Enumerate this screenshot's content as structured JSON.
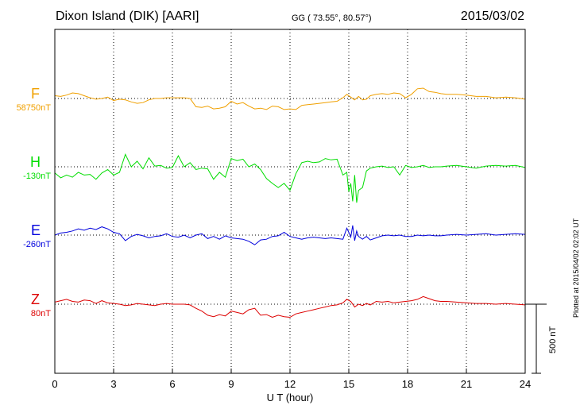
{
  "header": {
    "station": "Dixon Island (DIK)  [AARI]",
    "coords": "GG ( 73.55°,  80.57°)",
    "date": "2015/03/02"
  },
  "footer": {
    "plotted": "Plotted at 2015/04/02 02:02 UT"
  },
  "scale_bar": {
    "label": "500 nT",
    "value_nT": 500
  },
  "chart_data": {
    "type": "line",
    "title": "Dixon Island (DIK)  [AARI]",
    "xlabel": "U T (hour)",
    "ylabel": "",
    "xlim": [
      0,
      24
    ],
    "xticks": [
      0,
      3,
      6,
      9,
      12,
      15,
      18,
      21,
      24
    ],
    "grid": true,
    "series": [
      {
        "name": "F",
        "baseline": "58750nT",
        "color": "#f0a000",
        "x": [
          0,
          0.3,
          0.6,
          0.9,
          1.2,
          1.5,
          1.8,
          2.1,
          2.4,
          2.7,
          3.0,
          3.3,
          3.6,
          3.9,
          4.2,
          4.5,
          4.8,
          5.1,
          5.4,
          5.7,
          6.0,
          6.3,
          6.6,
          6.9,
          7.2,
          7.5,
          7.8,
          8.1,
          8.4,
          8.7,
          9.0,
          9.3,
          9.6,
          9.9,
          10.2,
          10.5,
          10.8,
          11.1,
          11.4,
          11.7,
          12.0,
          12.3,
          12.6,
          12.9,
          13.2,
          13.5,
          13.8,
          14.1,
          14.4,
          14.7,
          14.9,
          15.1,
          15.3,
          15.5,
          15.7,
          15.9,
          16.1,
          16.4,
          16.7,
          17.0,
          17.3,
          17.6,
          17.9,
          18.2,
          18.5,
          18.8,
          19.1,
          19.4,
          19.7,
          20.0,
          20.5,
          21.0,
          21.5,
          22.0,
          22.5,
          23.0,
          23.5,
          24.0
        ],
        "y": [
          20,
          15,
          25,
          40,
          35,
          20,
          5,
          -5,
          0,
          10,
          -15,
          -5,
          -10,
          -25,
          -35,
          -30,
          -10,
          0,
          0,
          5,
          5,
          5,
          5,
          0,
          -60,
          -65,
          -55,
          -75,
          -70,
          -60,
          -20,
          -40,
          -30,
          -55,
          -75,
          -70,
          -80,
          -55,
          -60,
          -80,
          -75,
          -80,
          -50,
          -45,
          -40,
          -35,
          -30,
          -25,
          -20,
          5,
          30,
          10,
          -10,
          15,
          -10,
          -5,
          20,
          30,
          35,
          30,
          40,
          35,
          5,
          30,
          70,
          75,
          50,
          45,
          35,
          30,
          30,
          25,
          15,
          15,
          5,
          10,
          5,
          -5
        ]
      },
      {
        "name": "H",
        "baseline": "-130nT",
        "color": "#00dd00",
        "x": [
          0,
          0.3,
          0.6,
          0.9,
          1.2,
          1.5,
          1.8,
          2.1,
          2.4,
          2.7,
          3.0,
          3.3,
          3.6,
          3.9,
          4.2,
          4.5,
          4.8,
          5.1,
          5.4,
          5.7,
          6.0,
          6.3,
          6.6,
          6.9,
          7.2,
          7.5,
          7.8,
          8.1,
          8.4,
          8.7,
          9.0,
          9.3,
          9.6,
          9.9,
          10.2,
          10.5,
          10.8,
          11.1,
          11.4,
          11.7,
          12.0,
          12.3,
          12.6,
          12.9,
          13.2,
          13.5,
          13.8,
          14.1,
          14.4,
          14.7,
          14.9,
          15.0,
          15.1,
          15.2,
          15.3,
          15.4,
          15.5,
          15.7,
          15.9,
          16.1,
          16.4,
          16.7,
          17.0,
          17.3,
          17.6,
          17.9,
          18.2,
          18.5,
          18.8,
          19.1,
          19.4,
          19.7,
          20.0,
          20.5,
          21.0,
          21.5,
          22.0,
          22.5,
          23.0,
          23.5,
          24.0
        ],
        "y": [
          -45,
          -80,
          -60,
          -75,
          -40,
          -60,
          -55,
          -90,
          -45,
          -20,
          -60,
          -40,
          90,
          0,
          40,
          -15,
          65,
          5,
          10,
          -10,
          -5,
          80,
          0,
          30,
          -20,
          -10,
          -15,
          -90,
          -40,
          -75,
          60,
          45,
          55,
          0,
          20,
          -20,
          -85,
          -120,
          -150,
          -120,
          -170,
          -50,
          30,
          40,
          30,
          35,
          60,
          50,
          55,
          -60,
          -40,
          -180,
          -120,
          -250,
          -60,
          -260,
          -170,
          -150,
          -30,
          -10,
          0,
          5,
          -5,
          0,
          -60,
          10,
          -5,
          0,
          10,
          -5,
          0,
          0,
          5,
          10,
          0,
          -10,
          5,
          10,
          5,
          10,
          -5
        ]
      },
      {
        "name": "E",
        "baseline": "-260nT",
        "color": "#0000dd",
        "x": [
          0,
          0.3,
          0.6,
          0.9,
          1.2,
          1.5,
          1.8,
          2.1,
          2.4,
          2.7,
          3.0,
          3.3,
          3.6,
          3.9,
          4.2,
          4.5,
          4.8,
          5.1,
          5.4,
          5.7,
          6.0,
          6.3,
          6.6,
          6.9,
          7.2,
          7.5,
          7.8,
          8.1,
          8.4,
          8.7,
          9.0,
          9.3,
          9.6,
          9.9,
          10.2,
          10.5,
          10.8,
          11.1,
          11.4,
          11.7,
          12.0,
          12.3,
          12.6,
          12.9,
          13.2,
          13.5,
          13.8,
          14.1,
          14.4,
          14.7,
          14.9,
          15.0,
          15.1,
          15.2,
          15.3,
          15.4,
          15.5,
          15.7,
          15.9,
          16.1,
          16.4,
          16.7,
          17.0,
          17.3,
          17.6,
          17.9,
          18.2,
          18.5,
          18.8,
          19.1,
          19.4,
          19.7,
          20.0,
          20.5,
          21.0,
          21.5,
          22.0,
          22.5,
          23.0,
          23.5,
          24.0
        ],
        "y": [
          0,
          15,
          20,
          30,
          45,
          35,
          50,
          40,
          60,
          45,
          20,
          10,
          -40,
          -10,
          5,
          -5,
          -20,
          -10,
          -5,
          10,
          -10,
          -15,
          0,
          -20,
          0,
          10,
          -25,
          -10,
          -30,
          -5,
          -20,
          -25,
          -30,
          -45,
          -70,
          -35,
          -30,
          -10,
          -5,
          20,
          -10,
          -20,
          -30,
          -20,
          -15,
          -20,
          -25,
          -20,
          -25,
          -30,
          50,
          20,
          -15,
          70,
          -40,
          30,
          -10,
          -30,
          -10,
          -35,
          -20,
          -5,
          0,
          -5,
          0,
          -10,
          -10,
          0,
          -5,
          0,
          -5,
          -5,
          0,
          5,
          0,
          5,
          10,
          0,
          5,
          10,
          5
        ]
      },
      {
        "name": "Z",
        "baseline": "80nT",
        "color": "#dd0000",
        "x": [
          0,
          0.3,
          0.6,
          0.9,
          1.2,
          1.5,
          1.8,
          2.1,
          2.4,
          2.7,
          3.0,
          3.3,
          3.6,
          3.9,
          4.2,
          4.5,
          4.8,
          5.1,
          5.4,
          5.7,
          6.0,
          6.3,
          6.6,
          6.9,
          7.2,
          7.5,
          7.8,
          8.1,
          8.4,
          8.7,
          9.0,
          9.3,
          9.6,
          9.9,
          10.2,
          10.5,
          10.8,
          11.1,
          11.4,
          11.7,
          12.0,
          12.3,
          12.6,
          12.9,
          13.2,
          13.5,
          13.8,
          14.1,
          14.4,
          14.7,
          14.9,
          15.1,
          15.3,
          15.5,
          15.7,
          15.9,
          16.1,
          16.4,
          16.7,
          17.0,
          17.3,
          17.6,
          17.9,
          18.2,
          18.5,
          18.8,
          19.1,
          19.4,
          19.7,
          20.0,
          20.5,
          21.0,
          21.5,
          22.0,
          22.5,
          23.0,
          23.5,
          24.0
        ],
        "y": [
          15,
          25,
          35,
          20,
          15,
          30,
          25,
          5,
          25,
          10,
          5,
          0,
          -10,
          -5,
          5,
          0,
          -5,
          -10,
          0,
          5,
          0,
          0,
          0,
          -5,
          -30,
          -50,
          -80,
          -90,
          -75,
          -85,
          -50,
          -60,
          -70,
          -40,
          -30,
          -80,
          -75,
          -95,
          -80,
          -90,
          -95,
          -70,
          -60,
          -50,
          -40,
          -30,
          -20,
          -10,
          -5,
          10,
          35,
          20,
          -20,
          0,
          -10,
          5,
          -5,
          20,
          15,
          20,
          10,
          15,
          20,
          25,
          35,
          55,
          40,
          25,
          20,
          20,
          15,
          10,
          5,
          5,
          0,
          5,
          0,
          -5
        ]
      }
    ]
  }
}
